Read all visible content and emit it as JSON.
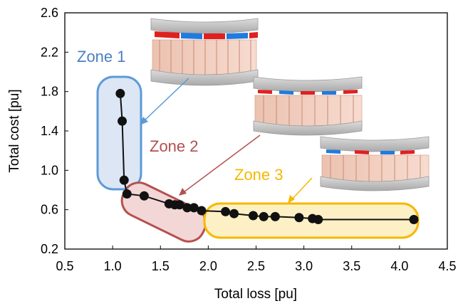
{
  "chart_data": {
    "type": "line",
    "xlabel": "Total loss [pu]",
    "ylabel": "Total cost [pu]",
    "xlim": [
      0.5,
      4.5
    ],
    "ylim": [
      0.2,
      2.6
    ],
    "xticks": [
      "0.5",
      "1.0",
      "1.5",
      "2.0",
      "2.5",
      "3.0",
      "3.5",
      "4.0",
      "4.5"
    ],
    "yticks": [
      "0.2",
      "0.6",
      "1.0",
      "1.4",
      "1.8",
      "2.2",
      "2.6"
    ],
    "grid": false,
    "series": [
      {
        "x": [
          1.08,
          1.1,
          1.12,
          1.15,
          1.33,
          1.59,
          1.65,
          1.7,
          1.78,
          1.85,
          1.93,
          2.18,
          2.27,
          2.47,
          2.58,
          2.7,
          2.95,
          3.09,
          3.15,
          4.15
        ],
        "y": [
          1.78,
          1.5,
          0.9,
          0.76,
          0.74,
          0.66,
          0.65,
          0.65,
          0.62,
          0.62,
          0.59,
          0.58,
          0.56,
          0.54,
          0.53,
          0.53,
          0.52,
          0.51,
          0.5,
          0.5
        ]
      }
    ],
    "annotations": [
      {
        "text": "Zone 1",
        "color": "#4a7fc1"
      },
      {
        "text": "Zone 2",
        "color": "#b24f4f"
      },
      {
        "text": "Zone 3",
        "color": "#f5b800"
      }
    ]
  },
  "colors": {
    "zone1_fill": "#dce6f5",
    "zone1_stroke": "#5b9bd5",
    "zone2_fill": "#f3d6d6",
    "zone2_stroke": "#b55050",
    "zone3_fill": "#fdf0c4",
    "zone3_stroke": "#f5b800",
    "marker": "#111111"
  },
  "icons": [
    "motor-rendering-1",
    "motor-rendering-2",
    "motor-rendering-3"
  ]
}
